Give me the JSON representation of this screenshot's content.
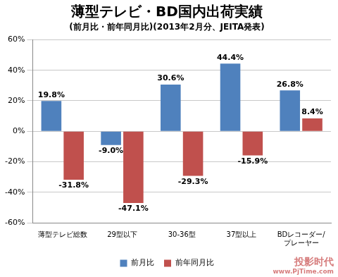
{
  "chart_data": {
    "type": "bar",
    "title": "薄型テレビ・BD国内出荷実績",
    "subtitle": "(前月比・前年同月比)(2013年2月分、JEITA発表)",
    "categories": [
      "薄型テレビ総数",
      "29型以下",
      "30-36型",
      "37型以上",
      "BDレコーダー/プレーヤー"
    ],
    "series": [
      {
        "name": "前月比",
        "color": "#4f81bd",
        "values": [
          19.8,
          -9.0,
          30.6,
          44.4,
          26.8
        ],
        "value_labels": [
          "19.8%",
          "-9.0%",
          "30.6%",
          "44.4%",
          "26.8%"
        ]
      },
      {
        "name": "前年同月比",
        "color": "#c0504d",
        "values": [
          -31.8,
          -47.1,
          -29.3,
          -15.9,
          8.4
        ],
        "value_labels": [
          "-31.8%",
          "-47.1%",
          "-29.3%",
          "-15.9%",
          "8.4%"
        ]
      }
    ],
    "ylim": [
      -60,
      60
    ],
    "yticks": [
      {
        "value": -60,
        "label": "-60%"
      },
      {
        "value": -40,
        "label": "-40%"
      },
      {
        "value": -20,
        "label": "-20%"
      },
      {
        "value": 0,
        "label": "0%"
      },
      {
        "value": 20,
        "label": "20%"
      },
      {
        "value": 40,
        "label": "40%"
      },
      {
        "value": 60,
        "label": "60%"
      }
    ],
    "grid": true,
    "legend": "bottom",
    "data_labels": true,
    "annotations": [
      "投影时代",
      "www.PjTime.com"
    ]
  }
}
